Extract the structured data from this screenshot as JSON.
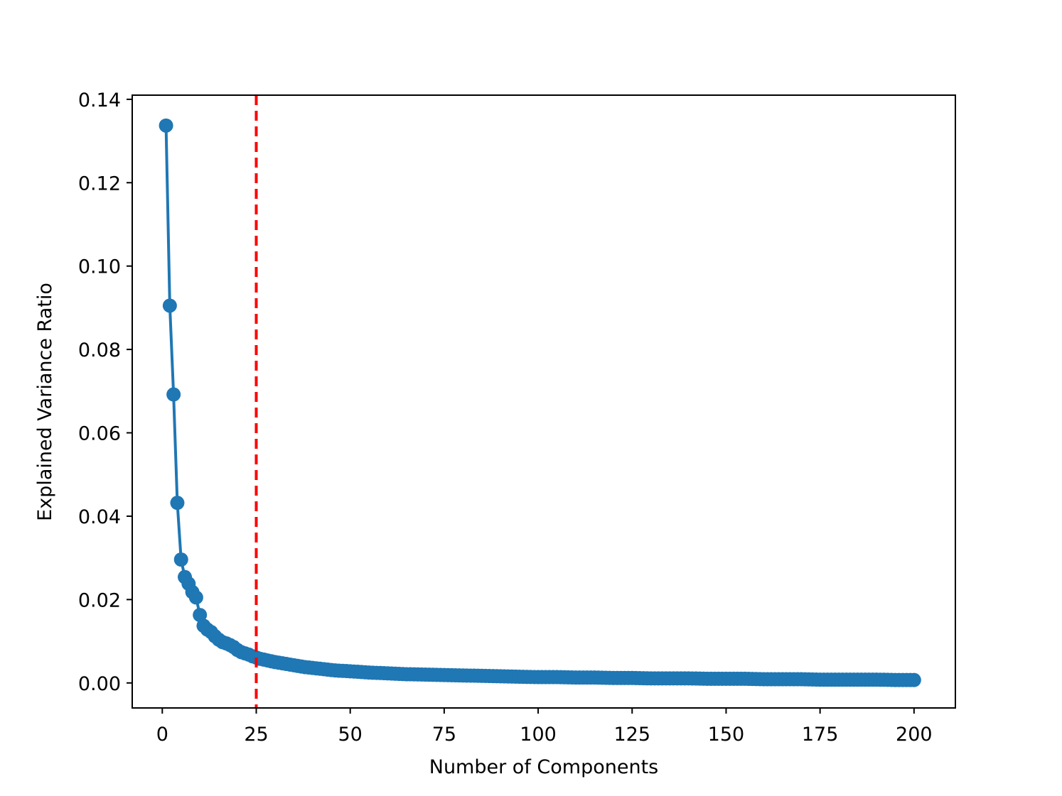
{
  "chart_data": {
    "type": "line",
    "title": "",
    "xlabel": "Number of Components",
    "ylabel": "Explained Variance Ratio",
    "xlim": [
      -8,
      211
    ],
    "ylim": [
      -0.006,
      0.141
    ],
    "x_ticks": [
      0,
      25,
      50,
      75,
      100,
      125,
      150,
      175,
      200
    ],
    "x_tick_labels": [
      "0",
      "25",
      "50",
      "75",
      "100",
      "125",
      "150",
      "175",
      "200"
    ],
    "y_ticks": [
      0.0,
      0.02,
      0.04,
      0.06,
      0.08,
      0.1,
      0.12,
      0.14
    ],
    "y_tick_labels": [
      "0.00",
      "0.02",
      "0.04",
      "0.06",
      "0.08",
      "0.10",
      "0.12",
      "0.14"
    ],
    "grid": false,
    "series_color": "#1f77b4",
    "threshold_color": "#ff0000",
    "threshold_x": 25,
    "series": [
      {
        "x": [
          1,
          2,
          3,
          4,
          5,
          6,
          7,
          8,
          9,
          10,
          11,
          12,
          13,
          14,
          15,
          16,
          17,
          18,
          19,
          20,
          21,
          22,
          23,
          24,
          25,
          26,
          27,
          28,
          29,
          30,
          32,
          34,
          36,
          38,
          40,
          42,
          44,
          46,
          48,
          50,
          55,
          60,
          65,
          70,
          75,
          80,
          85,
          90,
          95,
          100,
          105,
          110,
          115,
          120,
          125,
          130,
          135,
          140,
          145,
          150,
          155,
          160,
          165,
          170,
          175,
          180,
          185,
          190,
          195,
          200
        ],
        "y": [
          0.1337,
          0.0905,
          0.0692,
          0.0432,
          0.0296,
          0.0254,
          0.0238,
          0.0218,
          0.0205,
          0.0163,
          0.0137,
          0.0128,
          0.0122,
          0.0112,
          0.0104,
          0.0098,
          0.0095,
          0.0091,
          0.0086,
          0.0079,
          0.0074,
          0.0071,
          0.0068,
          0.0064,
          0.0061,
          0.0058,
          0.0056,
          0.0054,
          0.0052,
          0.005,
          0.0047,
          0.0044,
          0.0041,
          0.0038,
          0.0036,
          0.0034,
          0.0032,
          0.003,
          0.0029,
          0.0028,
          0.0025,
          0.0023,
          0.0021,
          0.002,
          0.0019,
          0.0018,
          0.0017,
          0.0016,
          0.0015,
          0.0014,
          0.0014,
          0.0013,
          0.0013,
          0.0012,
          0.0012,
          0.0011,
          0.0011,
          0.0011,
          0.001,
          0.001,
          0.001,
          0.0009,
          0.0009,
          0.0009,
          0.0008,
          0.0008,
          0.0008,
          0.0008,
          0.0007,
          0.0007
        ]
      }
    ]
  }
}
